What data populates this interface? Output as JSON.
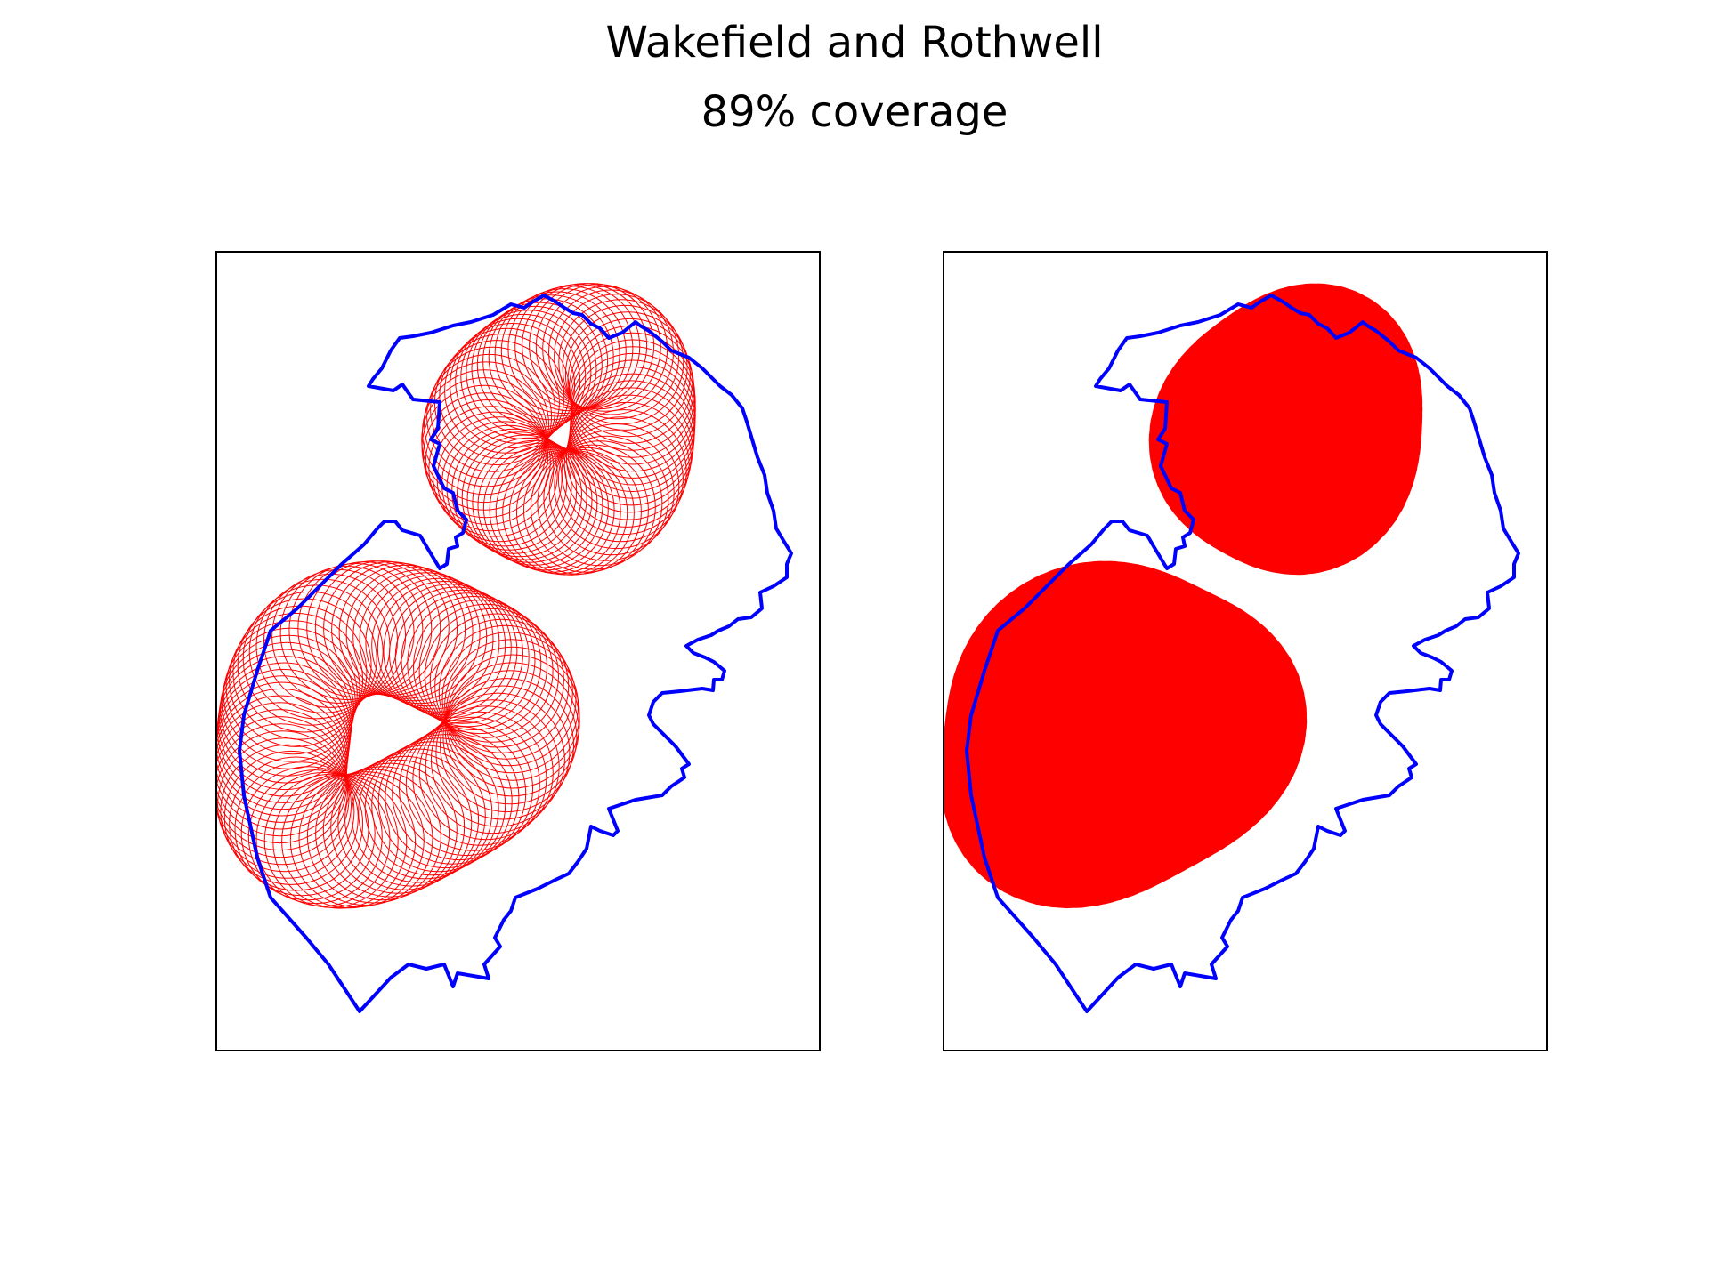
{
  "chart_data": {
    "type": "map",
    "title": "Wakefield and Rothwell",
    "subtitle": "89% coverage",
    "panels": [
      {
        "id": "circles-outline",
        "style": "circle-outlines"
      },
      {
        "id": "circles-filled",
        "style": "filled-union"
      }
    ],
    "colors": {
      "boundary": "#0000ff",
      "coverage": "#ff0000"
    },
    "grid": false,
    "legend": "none"
  }
}
